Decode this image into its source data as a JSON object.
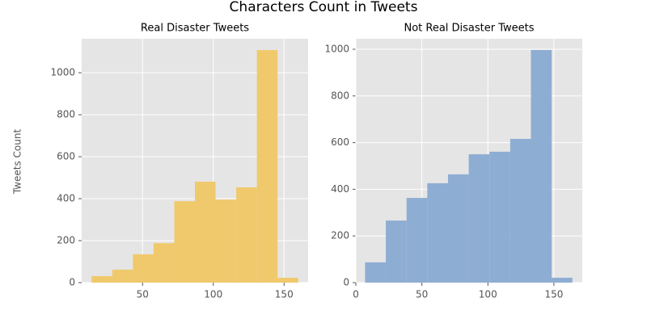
{
  "title": "Characters Count in Tweets",
  "ylabel": "Tweets Count",
  "chart_data": [
    {
      "type": "histogram",
      "title": "Real Disaster Tweets",
      "bins": [
        14,
        28.6,
        43.2,
        57.8,
        72.4,
        87,
        101.6,
        116.2,
        130.8,
        145.4,
        160
      ],
      "values": [
        31,
        62,
        135,
        188,
        388,
        481,
        396,
        454,
        1108,
        23
      ],
      "color": "#f0c96c",
      "xlim": [
        7,
        167
      ],
      "ylim": [
        0,
        1162
      ],
      "xticks": [
        50,
        100,
        150
      ],
      "yticks": [
        0,
        200,
        400,
        600,
        800,
        1000
      ],
      "grid": true
    },
    {
      "type": "histogram",
      "title": "Not Real Disaster Tweets",
      "bins": [
        7,
        22.7,
        38.4,
        54.1,
        69.8,
        85.5,
        101.2,
        116.9,
        132.6,
        148.3,
        164
      ],
      "values": [
        87,
        266,
        363,
        426,
        464,
        550,
        561,
        616,
        997,
        21
      ],
      "color": "#8eadd3",
      "xlim": [
        0,
        171.5
      ],
      "ylim": [
        0,
        1045
      ],
      "xticks": [
        0,
        50,
        100,
        150
      ],
      "yticks": [
        0,
        200,
        400,
        600,
        800,
        1000
      ],
      "grid": true
    }
  ]
}
